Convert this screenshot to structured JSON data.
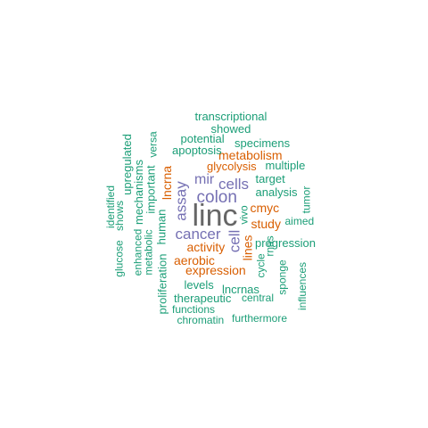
{
  "colors": {
    "teal": "#1b9e77",
    "orange": "#d95f02",
    "purple": "#7570b3",
    "gray": "#666666"
  },
  "words": [
    {
      "text": "linc",
      "color": "gray"
    },
    {
      "text": "colon",
      "color": "purple"
    },
    {
      "text": "cancer",
      "color": "purple"
    },
    {
      "text": "assay",
      "color": "purple"
    },
    {
      "text": "cells",
      "color": "purple"
    },
    {
      "text": "mir",
      "color": "purple"
    },
    {
      "text": "cell",
      "color": "purple"
    },
    {
      "text": "lncrna",
      "color": "orange"
    },
    {
      "text": "metabolism",
      "color": "orange"
    },
    {
      "text": "glycolysis",
      "color": "orange"
    },
    {
      "text": "cmyc",
      "color": "orange"
    },
    {
      "text": "study",
      "color": "orange"
    },
    {
      "text": "lines",
      "color": "orange"
    },
    {
      "text": "activity",
      "color": "orange"
    },
    {
      "text": "aerobic",
      "color": "orange"
    },
    {
      "text": "expression",
      "color": "orange"
    },
    {
      "text": "transcriptional",
      "color": "teal"
    },
    {
      "text": "showed",
      "color": "teal"
    },
    {
      "text": "potential",
      "color": "teal"
    },
    {
      "text": "specimens",
      "color": "teal"
    },
    {
      "text": "apoptosis",
      "color": "teal"
    },
    {
      "text": "multiple",
      "color": "teal"
    },
    {
      "text": "target",
      "color": "teal"
    },
    {
      "text": "analysis",
      "color": "teal"
    },
    {
      "text": "aimed",
      "color": "teal"
    },
    {
      "text": "progression",
      "color": "teal"
    },
    {
      "text": "levels",
      "color": "teal"
    },
    {
      "text": "lncrnas",
      "color": "teal"
    },
    {
      "text": "therapeutic",
      "color": "teal"
    },
    {
      "text": "central",
      "color": "teal"
    },
    {
      "text": "functions",
      "color": "teal"
    },
    {
      "text": "chromatin",
      "color": "teal"
    },
    {
      "text": "furthermore",
      "color": "teal"
    },
    {
      "text": "upregulated",
      "color": "teal"
    },
    {
      "text": "identified",
      "color": "teal"
    },
    {
      "text": "shows",
      "color": "teal"
    },
    {
      "text": "glucose",
      "color": "teal"
    },
    {
      "text": "mechanisms",
      "color": "teal"
    },
    {
      "text": "enhanced",
      "color": "teal"
    },
    {
      "text": "metabolic",
      "color": "teal"
    },
    {
      "text": "important",
      "color": "teal"
    },
    {
      "text": "versa",
      "color": "teal"
    },
    {
      "text": "human",
      "color": "teal"
    },
    {
      "text": "proliferation",
      "color": "teal"
    },
    {
      "text": "vivo",
      "color": "teal"
    },
    {
      "text": "tumor",
      "color": "teal"
    },
    {
      "text": "cycle",
      "color": "teal"
    },
    {
      "text": "rnas",
      "color": "teal"
    },
    {
      "text": "sponge",
      "color": "teal"
    },
    {
      "text": "influences",
      "color": "teal"
    }
  ]
}
